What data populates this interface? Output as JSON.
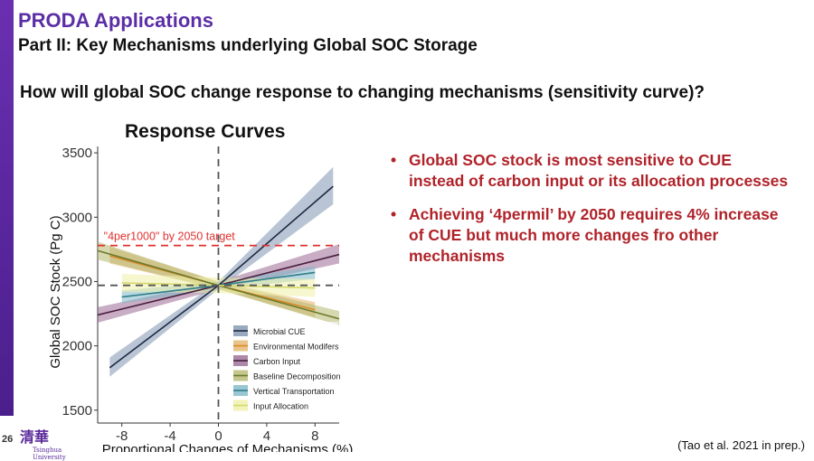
{
  "header": {
    "title": "PRODA Applications",
    "subtitle": "Part II: Key Mechanisms underlying Global SOC Storage",
    "question": "How will global SOC change response to changing mechanisms (sensitivity curve)?"
  },
  "bullets": [
    "Global SOC stock is most sensitive to CUE instead of carbon input or its allocation processes",
    "Achieving ‘4permil’ by 2050 requires 4% increase of CUE but much more changes fro other mechanisms"
  ],
  "footer": {
    "slide_number": "26",
    "logo_glyph": "清華",
    "logo_text": "Tsinghua University",
    "citation": "(Tao et al. 2021 in prep.)"
  },
  "chart_data": {
    "type": "line",
    "title": "Response Curves",
    "xlabel": "Proportional Changes of Mechanisms (%)",
    "ylabel": "Global SOC Stock (Pg C)",
    "xlim": [
      -10,
      10
    ],
    "ylim": [
      1400,
      3550
    ],
    "xticks": [
      -8,
      -4,
      0,
      4,
      8
    ],
    "yticks": [
      1500,
      2000,
      2500,
      3000,
      3500
    ],
    "grid": false,
    "legend_position": "bottom-right",
    "reference_lines": [
      {
        "orientation": "horizontal",
        "value": 2780,
        "color": "#e0322f",
        "style": "dashed",
        "label": "\"4per1000\" by 2050 target"
      },
      {
        "orientation": "horizontal",
        "value": 2470,
        "color": "#555555",
        "style": "dashed"
      },
      {
        "orientation": "vertical",
        "value": 0,
        "color": "#555555",
        "style": "dashed"
      }
    ],
    "series": [
      {
        "name": "Microbial CUE",
        "color": "#1f2a44",
        "band": "#7f95b0",
        "x": [
          -9,
          0,
          9.5
        ],
        "y": [
          1830,
          2470,
          3240
        ],
        "lower": [
          1760,
          2440,
          3100
        ],
        "upper": [
          1910,
          2500,
          3390
        ]
      },
      {
        "name": "Environmental Modifers",
        "color": "#d98a2a",
        "band": "#e3b56e",
        "x": [
          -9,
          0,
          8
        ],
        "y": [
          2700,
          2470,
          2280
        ],
        "lower": [
          2640,
          2440,
          2220
        ],
        "upper": [
          2770,
          2500,
          2340
        ]
      },
      {
        "name": "Carbon Input",
        "color": "#4a1f3f",
        "band": "#9a6a94",
        "x": [
          -10,
          0,
          10
        ],
        "y": [
          2240,
          2470,
          2710
        ],
        "lower": [
          2180,
          2440,
          2640
        ],
        "upper": [
          2300,
          2500,
          2790
        ]
      },
      {
        "name": "Baseline Decomposition",
        "color": "#6b7a2a",
        "band": "#b5b86e",
        "x": [
          -10,
          0,
          10
        ],
        "y": [
          2740,
          2470,
          2210
        ],
        "lower": [
          2670,
          2440,
          2160
        ],
        "upper": [
          2810,
          2500,
          2270
        ]
      },
      {
        "name": "Vertical Transportation",
        "color": "#2f7f8a",
        "band": "#7fb8c8",
        "x": [
          -8,
          0,
          8
        ],
        "y": [
          2380,
          2470,
          2570
        ],
        "lower": [
          2330,
          2440,
          2520
        ],
        "upper": [
          2430,
          2500,
          2620
        ]
      },
      {
        "name": "Input Allocation",
        "color": "#d6d86a",
        "band": "#eef0a8",
        "x": [
          -8,
          0,
          8
        ],
        "y": [
          2490,
          2470,
          2450
        ],
        "lower": [
          2420,
          2410,
          2380
        ],
        "upper": [
          2560,
          2530,
          2520
        ]
      }
    ]
  }
}
